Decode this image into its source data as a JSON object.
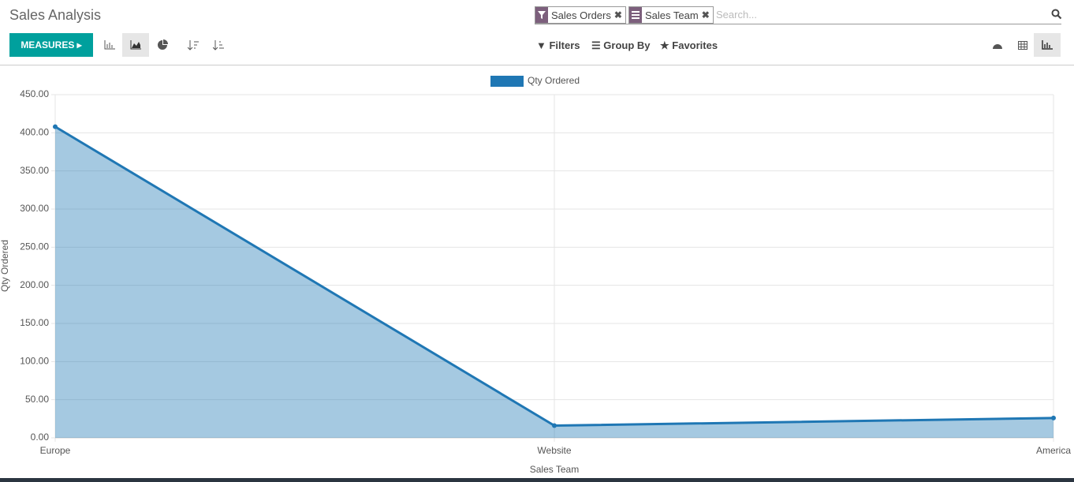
{
  "header": {
    "title": "Sales Analysis",
    "facets": [
      "Sales Orders",
      "Sales Team"
    ],
    "search_placeholder": "Search...",
    "measures": "MEASURES",
    "filters": "Filters",
    "group_by": "Group By",
    "favorites": "Favorites"
  },
  "chart_data": {
    "type": "area",
    "x_label": "Sales Team",
    "y_label": "Qty Ordered",
    "categories": [
      "Europe",
      "Website",
      "America"
    ],
    "series": [
      {
        "name": "Qty Ordered",
        "color": "#1f77b4",
        "values": [
          408,
          16,
          26
        ]
      }
    ],
    "ylim": [
      0,
      450
    ],
    "yticks": [
      {
        "value": 0,
        "label": "0.00"
      },
      {
        "value": 50,
        "label": "50.00"
      },
      {
        "value": 100,
        "label": "100.00"
      },
      {
        "value": 150,
        "label": "150.00"
      },
      {
        "value": 200,
        "label": "200.00"
      },
      {
        "value": 250,
        "label": "250.00"
      },
      {
        "value": 300,
        "label": "300.00"
      },
      {
        "value": 350,
        "label": "350.00"
      },
      {
        "value": 400,
        "label": "400.00"
      },
      {
        "value": 450,
        "label": "450.00"
      }
    ],
    "grid": true,
    "legend": "top"
  }
}
